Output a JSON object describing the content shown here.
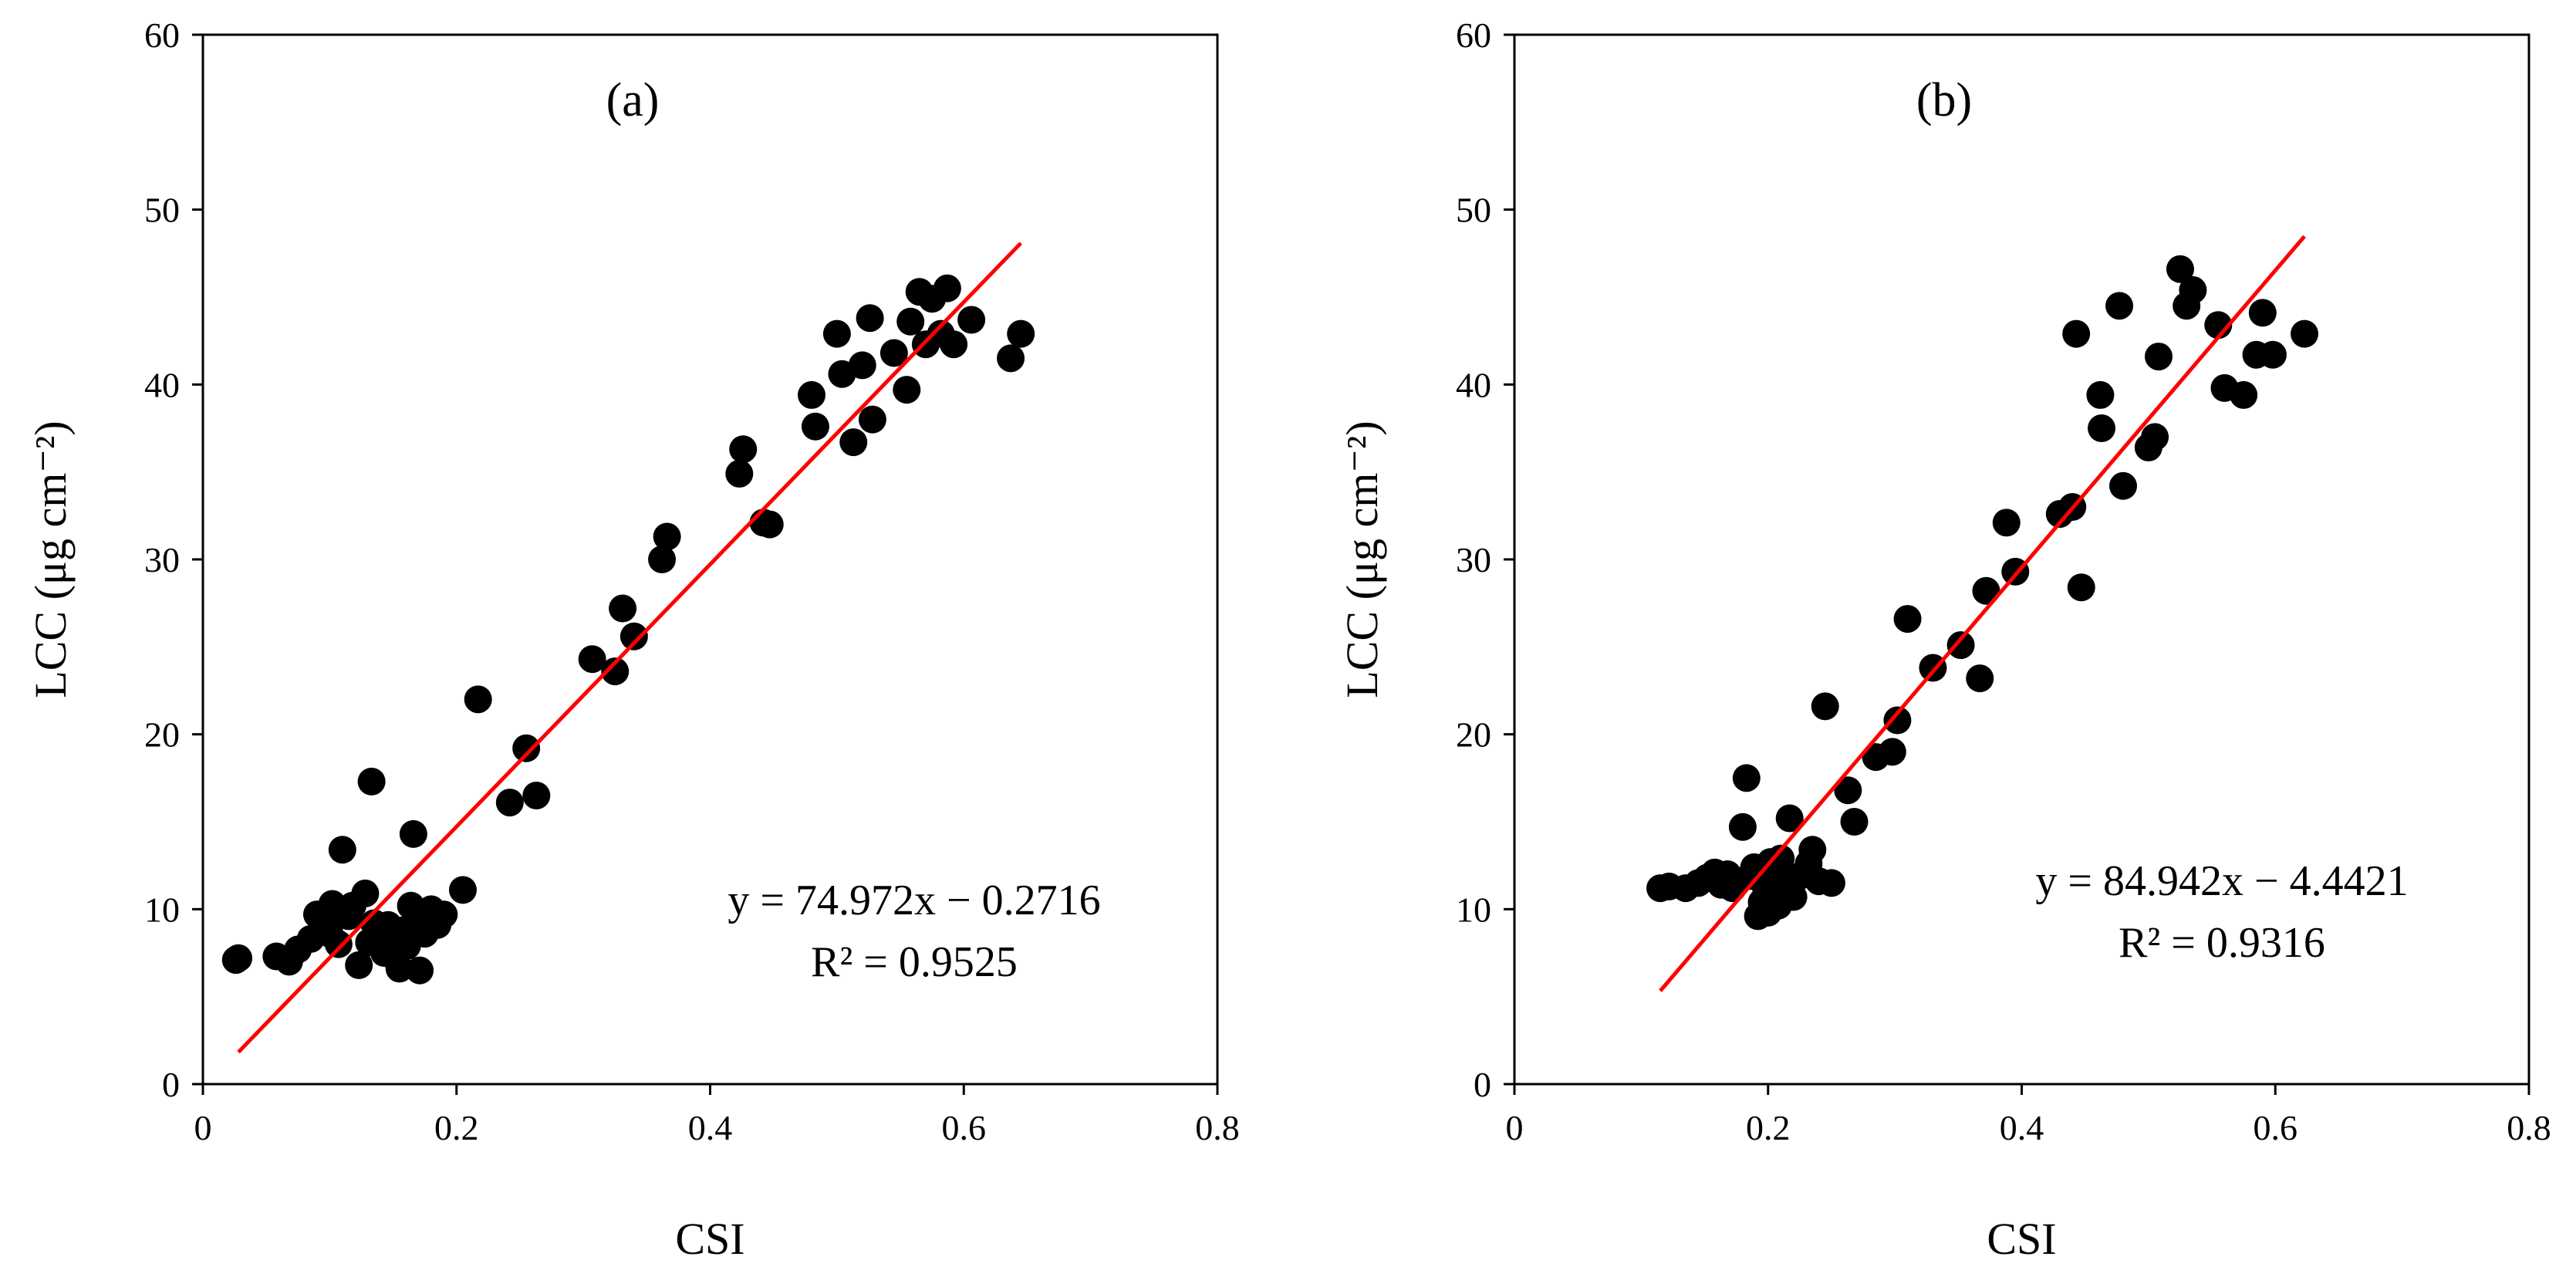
{
  "chart_data": [
    {
      "type": "scatter",
      "panel": "(a)",
      "xlabel": "CSI",
      "ylabel": "LCC (μg cm⁻²)",
      "xlim": [
        0,
        0.8
      ],
      "ylim": [
        0,
        60
      ],
      "xticks": [
        0,
        0.2,
        0.4,
        0.6,
        0.8
      ],
      "xtick_labels": [
        "0",
        "0.2",
        "0.4",
        "0.6",
        "0.8"
      ],
      "yticks": [
        0,
        10,
        20,
        30,
        40,
        50,
        60
      ],
      "ytick_labels": [
        "0",
        "10",
        "20",
        "30",
        "40",
        "50",
        "60"
      ],
      "equation": "y = 74.972x − 0.2716",
      "r2": "R² = 0.9525",
      "fit": {
        "slope": 74.972,
        "intercept": -0.2716,
        "x_range": [
          0.028,
          0.645
        ],
        "color": "#ff0000"
      },
      "marker_color": "#000000",
      "points": [
        [
          0.026,
          7.1
        ],
        [
          0.028,
          7.2
        ],
        [
          0.058,
          7.3
        ],
        [
          0.068,
          7.0
        ],
        [
          0.075,
          7.7
        ],
        [
          0.085,
          8.3
        ],
        [
          0.09,
          9.7
        ],
        [
          0.095,
          9.2
        ],
        [
          0.1,
          8.6
        ],
        [
          0.102,
          10.3
        ],
        [
          0.107,
          8.0
        ],
        [
          0.11,
          13.4
        ],
        [
          0.115,
          9.6
        ],
        [
          0.118,
          10.2
        ],
        [
          0.123,
          6.8
        ],
        [
          0.128,
          10.9
        ],
        [
          0.131,
          8.1
        ],
        [
          0.133,
          17.3
        ],
        [
          0.135,
          9.2
        ],
        [
          0.14,
          8.6
        ],
        [
          0.143,
          7.5
        ],
        [
          0.146,
          9.1
        ],
        [
          0.148,
          8.4
        ],
        [
          0.152,
          7.2
        ],
        [
          0.155,
          6.6
        ],
        [
          0.158,
          8.8
        ],
        [
          0.161,
          7.9
        ],
        [
          0.164,
          10.2
        ],
        [
          0.166,
          14.3
        ],
        [
          0.168,
          9.3
        ],
        [
          0.171,
          6.5
        ],
        [
          0.175,
          8.6
        ],
        [
          0.18,
          10.0
        ],
        [
          0.185,
          9.1
        ],
        [
          0.19,
          9.7
        ],
        [
          0.205,
          11.1
        ],
        [
          0.217,
          22.0
        ],
        [
          0.242,
          16.1
        ],
        [
          0.255,
          19.2
        ],
        [
          0.263,
          16.5
        ],
        [
          0.307,
          24.3
        ],
        [
          0.325,
          23.6
        ],
        [
          0.331,
          27.2
        ],
        [
          0.34,
          25.6
        ],
        [
          0.362,
          30.0
        ],
        [
          0.366,
          31.3
        ],
        [
          0.423,
          34.9
        ],
        [
          0.426,
          36.3
        ],
        [
          0.442,
          32.1
        ],
        [
          0.447,
          32.0
        ],
        [
          0.48,
          39.4
        ],
        [
          0.483,
          37.6
        ],
        [
          0.5,
          42.9
        ],
        [
          0.504,
          40.6
        ],
        [
          0.513,
          36.7
        ],
        [
          0.52,
          41.1
        ],
        [
          0.526,
          43.8
        ],
        [
          0.528,
          38.0
        ],
        [
          0.545,
          41.8
        ],
        [
          0.555,
          39.7
        ],
        [
          0.558,
          43.6
        ],
        [
          0.565,
          45.3
        ],
        [
          0.57,
          42.3
        ],
        [
          0.575,
          44.9
        ],
        [
          0.582,
          42.9
        ],
        [
          0.587,
          45.5
        ],
        [
          0.592,
          42.3
        ],
        [
          0.606,
          43.7
        ],
        [
          0.637,
          41.5
        ],
        [
          0.645,
          42.9
        ]
      ]
    },
    {
      "type": "scatter",
      "panel": "(b)",
      "xlabel": "CSI",
      "ylabel": "LCC (μg cm⁻²)",
      "xlim": [
        0,
        0.8
      ],
      "ylim": [
        0,
        60
      ],
      "xticks": [
        0,
        0.2,
        0.4,
        0.6,
        0.8
      ],
      "xtick_labels": [
        "0",
        "0.2",
        "0.4",
        "0.6",
        "0.8"
      ],
      "yticks": [
        0,
        10,
        20,
        30,
        40,
        50,
        60
      ],
      "ytick_labels": [
        "0",
        "10",
        "20",
        "30",
        "40",
        "50",
        "60"
      ],
      "equation": "y = 84.942x − 4.4421",
      "r2": "R² = 0.9316",
      "fit": {
        "slope": 84.942,
        "intercept": -4.4421,
        "x_range": [
          0.115,
          0.623
        ],
        "color": "#ff0000"
      },
      "marker_color": "#000000",
      "points": [
        [
          0.115,
          11.2
        ],
        [
          0.122,
          11.3
        ],
        [
          0.135,
          11.2
        ],
        [
          0.145,
          11.5
        ],
        [
          0.152,
          11.8
        ],
        [
          0.158,
          12.1
        ],
        [
          0.163,
          11.4
        ],
        [
          0.168,
          12.0
        ],
        [
          0.172,
          11.2
        ],
        [
          0.176,
          11.6
        ],
        [
          0.18,
          14.7
        ],
        [
          0.183,
          17.5
        ],
        [
          0.186,
          11.9
        ],
        [
          0.189,
          12.4
        ],
        [
          0.192,
          9.6
        ],
        [
          0.195,
          10.4
        ],
        [
          0.198,
          11.3
        ],
        [
          0.2,
          9.8
        ],
        [
          0.202,
          12.7
        ],
        [
          0.205,
          11.0
        ],
        [
          0.208,
          10.2
        ],
        [
          0.21,
          12.9
        ],
        [
          0.213,
          11.5
        ],
        [
          0.217,
          15.2
        ],
        [
          0.22,
          10.7
        ],
        [
          0.225,
          11.9
        ],
        [
          0.232,
          12.6
        ],
        [
          0.235,
          13.4
        ],
        [
          0.24,
          11.6
        ],
        [
          0.245,
          21.6
        ],
        [
          0.25,
          11.5
        ],
        [
          0.263,
          16.8
        ],
        [
          0.268,
          15.0
        ],
        [
          0.285,
          18.7
        ],
        [
          0.298,
          19.0
        ],
        [
          0.302,
          20.8
        ],
        [
          0.31,
          26.6
        ],
        [
          0.33,
          23.8
        ],
        [
          0.352,
          25.1
        ],
        [
          0.367,
          23.2
        ],
        [
          0.372,
          28.2
        ],
        [
          0.388,
          32.1
        ],
        [
          0.395,
          29.3
        ],
        [
          0.43,
          32.6
        ],
        [
          0.44,
          33.0
        ],
        [
          0.443,
          42.9
        ],
        [
          0.447,
          28.4
        ],
        [
          0.462,
          39.4
        ],
        [
          0.463,
          37.5
        ],
        [
          0.477,
          44.5
        ],
        [
          0.48,
          34.2
        ],
        [
          0.5,
          36.4
        ],
        [
          0.505,
          37.0
        ],
        [
          0.508,
          41.6
        ],
        [
          0.525,
          46.6
        ],
        [
          0.53,
          44.5
        ],
        [
          0.535,
          45.4
        ],
        [
          0.555,
          43.4
        ],
        [
          0.56,
          39.8
        ],
        [
          0.575,
          39.4
        ],
        [
          0.585,
          41.7
        ],
        [
          0.59,
          44.1
        ],
        [
          0.598,
          41.7
        ],
        [
          0.623,
          42.9
        ]
      ]
    }
  ]
}
